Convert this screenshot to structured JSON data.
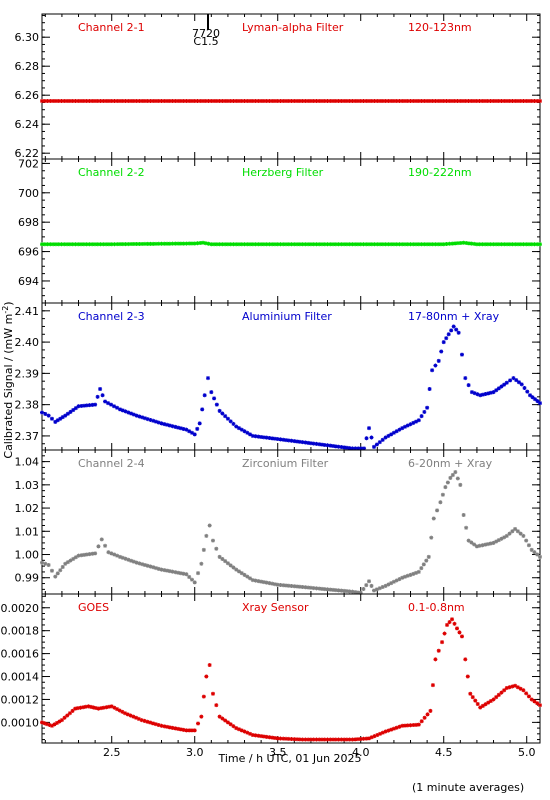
{
  "chart_data": {
    "type": "scatter",
    "xlabel": "Time / h UTC, 01 Jun 2025",
    "ylabel": "Calibrated Signal / (mW m",
    "ylabel_sup": "-2",
    "ylabel_close": ")",
    "xlim": [
      2.08,
      5.08
    ],
    "xticks": [
      2.5,
      3.0,
      3.5,
      4.0,
      4.5,
      5.0
    ],
    "xtick_labels": [
      "2.5",
      "3.0",
      "3.5",
      "4.0",
      "4.5",
      "5.0"
    ],
    "marker_annotation": {
      "x": 3.08,
      "line1": "7720",
      "line2": "C1.5"
    },
    "footnote": "(1 minute averages)",
    "panels": [
      {
        "labels": [
          "Channel 2-1",
          "Lyman-alpha Filter",
          "120-123nm"
        ],
        "color": "#dd0000",
        "ylim": [
          6.216,
          6.316
        ],
        "yticks": [
          6.22,
          6.24,
          6.26,
          6.28,
          6.3
        ],
        "ytick_labels": [
          "6.22",
          "6.24",
          "6.26",
          "6.28",
          "6.30"
        ],
        "points": [
          [
            2.08,
            6.256
          ],
          [
            2.5,
            6.256
          ],
          [
            3.0,
            6.256
          ],
          [
            3.5,
            6.256
          ],
          [
            4.0,
            6.256
          ],
          [
            4.5,
            6.256
          ],
          [
            5.08,
            6.256
          ]
        ]
      },
      {
        "labels": [
          "Channel 2-2",
          "Herzberg Filter",
          "190-222nm"
        ],
        "color": "#00dd00",
        "ylim": [
          692.5,
          702.3
        ],
        "yticks": [
          694,
          696,
          698,
          700,
          702
        ],
        "ytick_labels": [
          "694",
          "696",
          "698",
          "700",
          "702"
        ],
        "points": [
          [
            2.08,
            696.5
          ],
          [
            2.5,
            696.5
          ],
          [
            3.0,
            696.55
          ],
          [
            3.05,
            696.6
          ],
          [
            3.1,
            696.5
          ],
          [
            3.5,
            696.5
          ],
          [
            4.0,
            696.5
          ],
          [
            4.5,
            696.5
          ],
          [
            4.62,
            696.6
          ],
          [
            4.7,
            696.5
          ],
          [
            5.08,
            696.5
          ]
        ]
      },
      {
        "labels": [
          "Channel 2-3",
          "Aluminium Filter",
          "17-80nm + Xray"
        ],
        "color": "#0000cc",
        "ylim": [
          2.3655,
          2.4125
        ],
        "yticks": [
          2.37,
          2.38,
          2.39,
          2.4,
          2.41
        ],
        "ytick_labels": [
          "2.37",
          "2.38",
          "2.39",
          "2.40",
          "2.41"
        ],
        "points": [
          [
            2.08,
            2.3775
          ],
          [
            2.12,
            2.3765
          ],
          [
            2.16,
            2.3745
          ],
          [
            2.22,
            2.3765
          ],
          [
            2.3,
            2.3795
          ],
          [
            2.4,
            2.38
          ],
          [
            2.43,
            2.385
          ],
          [
            2.46,
            2.381
          ],
          [
            2.55,
            2.3785
          ],
          [
            2.65,
            2.3765
          ],
          [
            2.8,
            2.374
          ],
          [
            2.95,
            2.372
          ],
          [
            3.0,
            2.3705
          ],
          [
            3.03,
            2.374
          ],
          [
            3.06,
            2.383
          ],
          [
            3.08,
            2.3885
          ],
          [
            3.1,
            2.384
          ],
          [
            3.15,
            2.378
          ],
          [
            3.25,
            2.373
          ],
          [
            3.35,
            2.37
          ],
          [
            3.5,
            2.369
          ],
          [
            3.65,
            2.368
          ],
          [
            3.8,
            2.367
          ],
          [
            3.95,
            2.366
          ],
          [
            4.02,
            2.366
          ],
          [
            4.05,
            2.3725
          ],
          [
            4.08,
            2.3665
          ],
          [
            4.15,
            2.3695
          ],
          [
            4.25,
            2.3725
          ],
          [
            4.35,
            2.375
          ],
          [
            4.4,
            2.379
          ],
          [
            4.43,
            2.391
          ],
          [
            4.47,
            2.394
          ],
          [
            4.5,
            2.4
          ],
          [
            4.53,
            2.4025
          ],
          [
            4.56,
            2.405
          ],
          [
            4.59,
            2.403
          ],
          [
            4.61,
            2.396
          ],
          [
            4.63,
            2.3885
          ],
          [
            4.67,
            2.384
          ],
          [
            4.72,
            2.383
          ],
          [
            4.8,
            2.384
          ],
          [
            4.88,
            2.387
          ],
          [
            4.92,
            2.3885
          ],
          [
            4.97,
            2.3865
          ],
          [
            5.02,
            2.383
          ],
          [
            5.08,
            2.3805
          ]
        ]
      },
      {
        "labels": [
          "Channel 2-4",
          "Zirconium Filter",
          "6-20nm + Xray"
        ],
        "color": "#808080",
        "ylim": [
          0.983,
          1.045
        ],
        "yticks": [
          0.99,
          1.0,
          1.01,
          1.02,
          1.03,
          1.04
        ],
        "ytick_labels": [
          "0.99",
          "1.00",
          "1.01",
          "1.02",
          "1.03",
          "1.04"
        ],
        "points": [
          [
            2.08,
            0.9965
          ],
          [
            2.12,
            0.9955
          ],
          [
            2.16,
            0.9905
          ],
          [
            2.22,
            0.996
          ],
          [
            2.3,
            0.9995
          ],
          [
            2.4,
            1.0005
          ],
          [
            2.44,
            1.0065
          ],
          [
            2.48,
            1.001
          ],
          [
            2.55,
            0.999
          ],
          [
            2.65,
            0.9965
          ],
          [
            2.8,
            0.9935
          ],
          [
            2.95,
            0.9915
          ],
          [
            3.0,
            0.988
          ],
          [
            3.04,
            0.996
          ],
          [
            3.07,
            1.008
          ],
          [
            3.09,
            1.0125
          ],
          [
            3.11,
            1.006
          ],
          [
            3.15,
            0.999
          ],
          [
            3.25,
            0.9935
          ],
          [
            3.35,
            0.989
          ],
          [
            3.5,
            0.987
          ],
          [
            3.65,
            0.986
          ],
          [
            3.8,
            0.985
          ],
          [
            3.95,
            0.984
          ],
          [
            4.0,
            0.9835
          ],
          [
            4.05,
            0.9885
          ],
          [
            4.08,
            0.9845
          ],
          [
            4.15,
            0.9865
          ],
          [
            4.25,
            0.99
          ],
          [
            4.35,
            0.9925
          ],
          [
            4.41,
            0.999
          ],
          [
            4.44,
            1.0155
          ],
          [
            4.48,
            1.0225
          ],
          [
            4.51,
            1.029
          ],
          [
            4.54,
            1.033
          ],
          [
            4.57,
            1.0355
          ],
          [
            4.6,
            1.03
          ],
          [
            4.62,
            1.017
          ],
          [
            4.65,
            1.006
          ],
          [
            4.7,
            1.0035
          ],
          [
            4.8,
            1.005
          ],
          [
            4.88,
            1.008
          ],
          [
            4.93,
            1.011
          ],
          [
            4.98,
            1.008
          ],
          [
            5.03,
            1.002
          ],
          [
            5.08,
            0.999
          ]
        ]
      },
      {
        "labels": [
          "GOES",
          "Xray Sensor",
          "0.1-0.8nm"
        ],
        "color": "#dd0000",
        "ylim": [
          0.00082,
          0.00212
        ],
        "yticks": [
          0.001,
          0.0012,
          0.0014,
          0.0016,
          0.0018,
          0.002
        ],
        "ytick_labels": [
          "0.0010",
          "0.0012",
          "0.0014",
          "0.0016",
          "0.0018",
          "0.0020"
        ],
        "points": [
          [
            2.08,
            0.001
          ],
          [
            2.14,
            0.00097
          ],
          [
            2.2,
            0.00102
          ],
          [
            2.28,
            0.00112
          ],
          [
            2.36,
            0.00114
          ],
          [
            2.42,
            0.00112
          ],
          [
            2.5,
            0.00114
          ],
          [
            2.58,
            0.00108
          ],
          [
            2.68,
            0.00102
          ],
          [
            2.8,
            0.00097
          ],
          [
            2.95,
            0.00093
          ],
          [
            3.0,
            0.00093
          ],
          [
            3.04,
            0.00105
          ],
          [
            3.07,
            0.0014
          ],
          [
            3.09,
            0.0015
          ],
          [
            3.11,
            0.00125
          ],
          [
            3.15,
            0.00105
          ],
          [
            3.25,
            0.00095
          ],
          [
            3.35,
            0.00089
          ],
          [
            3.5,
            0.00086
          ],
          [
            3.65,
            0.00085
          ],
          [
            3.8,
            0.00085
          ],
          [
            3.95,
            0.00085
          ],
          [
            4.05,
            0.00086
          ],
          [
            4.15,
            0.00092
          ],
          [
            4.25,
            0.00097
          ],
          [
            4.35,
            0.00098
          ],
          [
            4.42,
            0.0011
          ],
          [
            4.45,
            0.00155
          ],
          [
            4.49,
            0.0017
          ],
          [
            4.52,
            0.00185
          ],
          [
            4.55,
            0.0019
          ],
          [
            4.58,
            0.00182
          ],
          [
            4.61,
            0.00175
          ],
          [
            4.63,
            0.00155
          ],
          [
            4.66,
            0.00125
          ],
          [
            4.72,
            0.00113
          ],
          [
            4.8,
            0.0012
          ],
          [
            4.88,
            0.0013
          ],
          [
            4.93,
            0.00132
          ],
          [
            4.98,
            0.00128
          ],
          [
            5.03,
            0.0012
          ],
          [
            5.08,
            0.00115
          ]
        ]
      }
    ]
  }
}
